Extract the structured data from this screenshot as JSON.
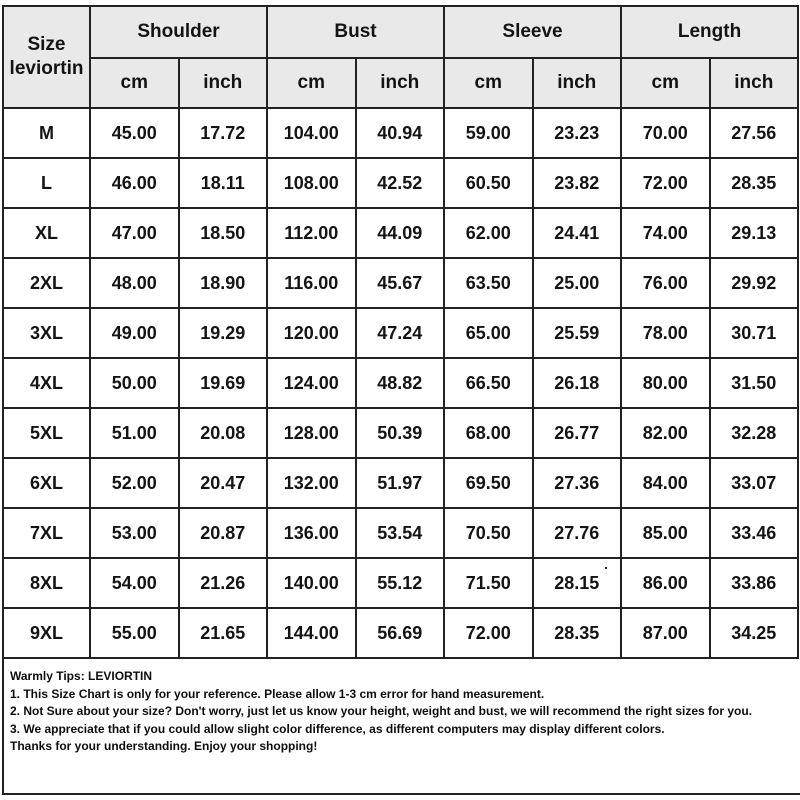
{
  "chart_data": {
    "type": "table",
    "title": "Size leviortin",
    "header": {
      "corner_line1": "Size",
      "corner_line2": "leviortin",
      "groups": [
        "Shoulder",
        "Bust",
        "Sleeve",
        "Length"
      ],
      "unit_cm": "cm",
      "unit_inch": "inch"
    },
    "columns": [
      "Size",
      "Shoulder cm",
      "Shoulder inch",
      "Bust cm",
      "Bust inch",
      "Sleeve cm",
      "Sleeve inch",
      "Length cm",
      "Length inch"
    ],
    "rows": [
      {
        "size": "M",
        "values": [
          "45.00",
          "17.72",
          "104.00",
          "40.94",
          "59.00",
          "23.23",
          "70.00",
          "27.56"
        ]
      },
      {
        "size": "L",
        "values": [
          "46.00",
          "18.11",
          "108.00",
          "42.52",
          "60.50",
          "23.82",
          "72.00",
          "28.35"
        ]
      },
      {
        "size": "XL",
        "values": [
          "47.00",
          "18.50",
          "112.00",
          "44.09",
          "62.00",
          "24.41",
          "74.00",
          "29.13"
        ]
      },
      {
        "size": "2XL",
        "values": [
          "48.00",
          "18.90",
          "116.00",
          "45.67",
          "63.50",
          "25.00",
          "76.00",
          "29.92"
        ]
      },
      {
        "size": "3XL",
        "values": [
          "49.00",
          "19.29",
          "120.00",
          "47.24",
          "65.00",
          "25.59",
          "78.00",
          "30.71"
        ]
      },
      {
        "size": "4XL",
        "values": [
          "50.00",
          "19.69",
          "124.00",
          "48.82",
          "66.50",
          "26.18",
          "80.00",
          "31.50"
        ]
      },
      {
        "size": "5XL",
        "values": [
          "51.00",
          "20.08",
          "128.00",
          "50.39",
          "68.00",
          "26.77",
          "82.00",
          "32.28"
        ]
      },
      {
        "size": "6XL",
        "values": [
          "52.00",
          "20.47",
          "132.00",
          "51.97",
          "69.50",
          "27.36",
          "84.00",
          "33.07"
        ]
      },
      {
        "size": "7XL",
        "values": [
          "53.00",
          "20.87",
          "136.00",
          "53.54",
          "70.50",
          "27.76",
          "85.00",
          "33.46"
        ]
      },
      {
        "size": "8XL",
        "values": [
          "54.00",
          "21.26",
          "140.00",
          "55.12",
          "71.50",
          "28.15",
          "86.00",
          "33.86"
        ]
      },
      {
        "size": "9XL",
        "values": [
          "55.00",
          "21.65",
          "144.00",
          "56.69",
          "72.00",
          "28.35",
          "87.00",
          "34.25"
        ]
      }
    ]
  },
  "tips": {
    "title": "Warmly Tips: LEVIORTIN",
    "lines": [
      "1. This Size Chart is only for your reference. Please allow 1-3 cm error for hand measurement.",
      "2. Not Sure about your size? Don't worry, just let us know your height, weight and bust, we will recommend the right sizes for you.",
      "3. We appreciate that if you could allow slight color difference, as different computers may display different colors.",
      "Thanks for your understanding. Enjoy your shopping!"
    ]
  },
  "artifact": {
    "stray_dot": "."
  },
  "colors": {
    "header_bg": "#e9e9e9",
    "border": "#222222",
    "text": "#141414",
    "background": "#ffffff"
  }
}
